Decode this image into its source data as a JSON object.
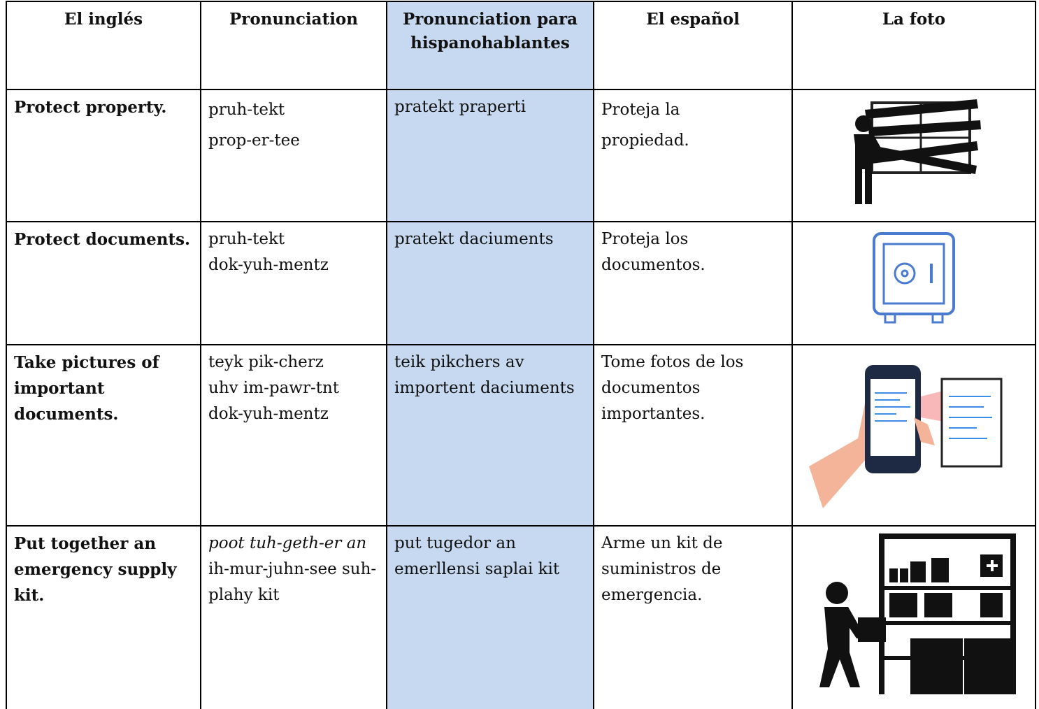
{
  "table": {
    "headers": [
      "El inglés",
      "Pronunciation",
      "Pronunciation para hispanohablantes",
      "El español",
      "La foto"
    ],
    "rows": [
      [
        [
          "Protect property."
        ],
        [
          "pruh-tekt",
          "prop-er-tee"
        ],
        [
          "pratekt praperti"
        ],
        [
          "Proteja la",
          "propiedad."
        ]
      ],
      [
        [
          "Protect documents."
        ],
        [
          "pruh-tekt",
          "dok-yuh-mentz"
        ],
        [
          "pratekt daciuments"
        ],
        [
          "Proteja los documentos."
        ]
      ],
      [
        [
          "Take pictures of important documents."
        ],
        [
          "teyk pik-cherz",
          "uhv im-pawr-tnt",
          "dok-yuh-mentz"
        ],
        [
          "teik pikchers av importent daciuments"
        ],
        [
          "Tome fotos de los documentos importantes."
        ]
      ],
      [
        [
          "Put together an emergency supply kit."
        ],
        [
          "poot tuh-geth-er an",
          "ih-mur-juhn-see suh-plahy kit"
        ],
        [
          "put tugedor an emerllensi saplai kit"
        ],
        [
          "Arme un kit de suministros de emergencia."
        ]
      ]
    ]
  }
}
